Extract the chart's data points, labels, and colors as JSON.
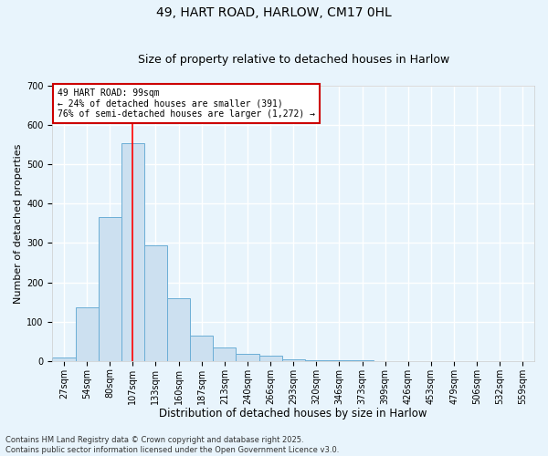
{
  "title1": "49, HART ROAD, HARLOW, CM17 0HL",
  "title2": "Size of property relative to detached houses in Harlow",
  "xlabel": "Distribution of detached houses by size in Harlow",
  "ylabel": "Number of detached properties",
  "categories": [
    "27sqm",
    "54sqm",
    "80sqm",
    "107sqm",
    "133sqm",
    "160sqm",
    "187sqm",
    "213sqm",
    "240sqm",
    "266sqm",
    "293sqm",
    "320sqm",
    "346sqm",
    "373sqm",
    "399sqm",
    "426sqm",
    "453sqm",
    "479sqm",
    "506sqm",
    "532sqm",
    "559sqm"
  ],
  "values": [
    8,
    137,
    365,
    555,
    295,
    160,
    65,
    35,
    18,
    13,
    5,
    3,
    2,
    1,
    0,
    0,
    0,
    0,
    0,
    0,
    0
  ],
  "bar_color": "#cce0f0",
  "bar_edge_color": "#6baed6",
  "redline_x": 3.0,
  "ylim": [
    0,
    700
  ],
  "yticks": [
    0,
    100,
    200,
    300,
    400,
    500,
    600,
    700
  ],
  "annotation_text": "49 HART ROAD: 99sqm\n← 24% of detached houses are smaller (391)\n76% of semi-detached houses are larger (1,272) →",
  "annotation_box_color": "#ffffff",
  "annotation_box_edge": "#cc0000",
  "footnote1": "Contains HM Land Registry data © Crown copyright and database right 2025.",
  "footnote2": "Contains public sector information licensed under the Open Government Licence v3.0.",
  "background_color": "#e8f4fc",
  "grid_color": "#ffffff",
  "title_fontsize": 10,
  "subtitle_fontsize": 9,
  "xlabel_fontsize": 8.5,
  "ylabel_fontsize": 8,
  "tick_fontsize": 7,
  "annotation_fontsize": 7,
  "footnote_fontsize": 6
}
